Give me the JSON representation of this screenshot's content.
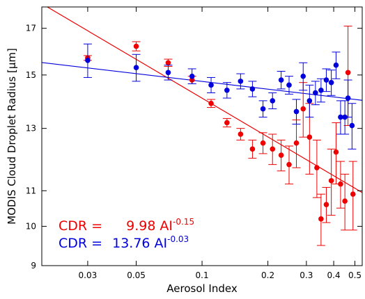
{
  "chart_data": {
    "type": "scatter",
    "title": "",
    "xlabel": "Aerosol Index",
    "ylabel_text": "MODIS Cloud Droplet Radius [",
    "ylabel_unit": "μm",
    "ylabel_close": "]",
    "xscale": "log",
    "yscale": "log",
    "xlim": [
      0.0185,
      0.54
    ],
    "ylim": [
      9.0,
      18.0
    ],
    "x_ticks": [
      0.03,
      0.05,
      0.1,
      0.2,
      0.3,
      0.4,
      0.5
    ],
    "x_tick_labels": [
      "0.03",
      "0.05",
      "0.1",
      "0.2",
      "0.3",
      "0.4",
      "0.5"
    ],
    "y_ticks": [
      9,
      10,
      11,
      13,
      15,
      17
    ],
    "y_tick_labels": [
      "9",
      "10",
      "11",
      "13",
      "15",
      "17"
    ],
    "grid": false,
    "series": [
      {
        "color": "#ee0000",
        "points": [
          {
            "x": 0.03,
            "y": 15.7,
            "err": 0.1
          },
          {
            "x": 0.05,
            "y": 16.2,
            "err": 0.2
          },
          {
            "x": 0.07,
            "y": 15.5,
            "err": 0.15
          },
          {
            "x": 0.09,
            "y": 14.8,
            "err": 0.15
          },
          {
            "x": 0.11,
            "y": 13.9,
            "err": 0.15
          },
          {
            "x": 0.13,
            "y": 13.2,
            "err": 0.15
          },
          {
            "x": 0.15,
            "y": 12.8,
            "err": 0.2
          },
          {
            "x": 0.17,
            "y": 12.3,
            "err": 0.3
          },
          {
            "x": 0.19,
            "y": 12.5,
            "err": 0.35
          },
          {
            "x": 0.21,
            "y": 12.3,
            "err": 0.5
          },
          {
            "x": 0.23,
            "y": 12.1,
            "err": 0.5
          },
          {
            "x": 0.25,
            "y": 11.8,
            "err": 0.6
          },
          {
            "x": 0.27,
            "y": 12.5,
            "err": 0.8
          },
          {
            "x": 0.29,
            "y": 13.7,
            "err": 1.0
          },
          {
            "x": 0.31,
            "y": 12.7,
            "err": 1.2
          },
          {
            "x": 0.335,
            "y": 11.7,
            "err": 0.9
          },
          {
            "x": 0.35,
            "y": 10.2,
            "err": 0.7
          },
          {
            "x": 0.37,
            "y": 10.6,
            "err": 0.5
          },
          {
            "x": 0.39,
            "y": 11.3,
            "err": 1.0
          },
          {
            "x": 0.41,
            "y": 12.2,
            "err": 1.0
          },
          {
            "x": 0.43,
            "y": 11.2,
            "err": 0.7
          },
          {
            "x": 0.45,
            "y": 10.7,
            "err": 0.8
          },
          {
            "x": 0.465,
            "y": 15.1,
            "err": 2.0
          },
          {
            "x": 0.49,
            "y": 10.9,
            "err": 1.0
          }
        ],
        "fit": {
          "a": 9.98,
          "b": -0.15
        }
      },
      {
        "color": "#0000dd",
        "points": [
          {
            "x": 0.03,
            "y": 15.6,
            "err": 0.7
          },
          {
            "x": 0.05,
            "y": 15.3,
            "err": 0.55
          },
          {
            "x": 0.07,
            "y": 15.1,
            "err": 0.3
          },
          {
            "x": 0.09,
            "y": 14.95,
            "err": 0.3
          },
          {
            "x": 0.11,
            "y": 14.6,
            "err": 0.3
          },
          {
            "x": 0.13,
            "y": 14.4,
            "err": 0.3
          },
          {
            "x": 0.15,
            "y": 14.75,
            "err": 0.3
          },
          {
            "x": 0.17,
            "y": 14.45,
            "err": 0.3
          },
          {
            "x": 0.19,
            "y": 13.7,
            "err": 0.3
          },
          {
            "x": 0.21,
            "y": 14.0,
            "err": 0.3
          },
          {
            "x": 0.23,
            "y": 14.8,
            "err": 0.35
          },
          {
            "x": 0.25,
            "y": 14.6,
            "err": 0.35
          },
          {
            "x": 0.27,
            "y": 13.6,
            "err": 0.45
          },
          {
            "x": 0.29,
            "y": 14.95,
            "err": 0.55
          },
          {
            "x": 0.31,
            "y": 14.0,
            "err": 0.6
          },
          {
            "x": 0.33,
            "y": 14.3,
            "err": 0.45
          },
          {
            "x": 0.35,
            "y": 14.4,
            "err": 0.45
          },
          {
            "x": 0.37,
            "y": 14.8,
            "err": 0.45
          },
          {
            "x": 0.39,
            "y": 14.7,
            "err": 0.5
          },
          {
            "x": 0.41,
            "y": 15.4,
            "err": 0.55
          },
          {
            "x": 0.43,
            "y": 13.4,
            "err": 0.6
          },
          {
            "x": 0.45,
            "y": 13.4,
            "err": 0.6
          },
          {
            "x": 0.465,
            "y": 14.1,
            "err": 0.7
          },
          {
            "x": 0.485,
            "y": 13.1,
            "err": 0.8
          }
        ],
        "fit": {
          "a": 13.76,
          "b": -0.03
        }
      }
    ],
    "annotations": [
      {
        "color": "#ee0000",
        "prefix": "CDR = ",
        "coef": "9.98",
        "base": "AI",
        "exp": "-0.15"
      },
      {
        "color": "#0000dd",
        "prefix": "CDR = ",
        "coef": "13.76",
        "base": "AI",
        "exp": "-0.03"
      }
    ]
  }
}
